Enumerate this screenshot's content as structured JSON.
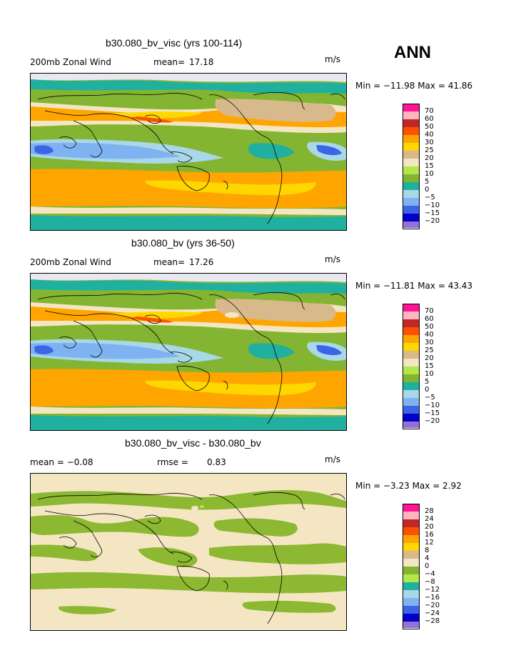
{
  "season": "ANN",
  "panels": [
    {
      "title": "b30.080_bv_visc (yrs 100-114)",
      "left_label": "200mb Zonal Wind",
      "mean_label": "mean=",
      "mean_value": "17.18",
      "units": "m/s",
      "minmax": "Min = −11.98 Max =   41.86",
      "colorbar_labels": [
        "70",
        "60",
        "50",
        "40",
        "30",
        "25",
        "20",
        "15",
        "10",
        "5",
        "0",
        "−5",
        "−10",
        "−15",
        "−20"
      ]
    },
    {
      "title": "b30.080_bv (yrs 36-50)",
      "left_label": "200mb Zonal Wind",
      "mean_label": "mean=",
      "mean_value": "17.26",
      "units": "m/s",
      "minmax": "Min = −11.81 Max =   43.43",
      "colorbar_labels": [
        "70",
        "60",
        "50",
        "40",
        "30",
        "25",
        "20",
        "15",
        "10",
        "5",
        "0",
        "−5",
        "−10",
        "−15",
        "−20"
      ]
    },
    {
      "title": "b30.080_bv_visc - b30.080_bv",
      "left_label": "mean =   −0.08",
      "mean_label": "rmse =",
      "mean_value": "0.83",
      "units": "m/s",
      "minmax": "Min =   −3.23 Max =    2.92",
      "colorbar_labels": [
        "28",
        "24",
        "20",
        "16",
        "12",
        "8",
        "4",
        "0",
        "−4",
        "−8",
        "−12",
        "−16",
        "−20",
        "−24",
        "−28"
      ]
    }
  ],
  "colorbar_colors": [
    "#ff1493",
    "#ffb6c1",
    "#c02828",
    "#ff5000",
    "#ffa500",
    "#ffd700",
    "#d8b98c",
    "#f5e6c3",
    "#b4e84a",
    "#84b532",
    "#20b0a0",
    "#a8d8e8",
    "#7fb2f0",
    "#3c64e6",
    "#0000c8",
    "#9370db"
  ],
  "diff_colors": {
    "positive": "#f5e6c3",
    "negative": "#8cb832"
  }
}
